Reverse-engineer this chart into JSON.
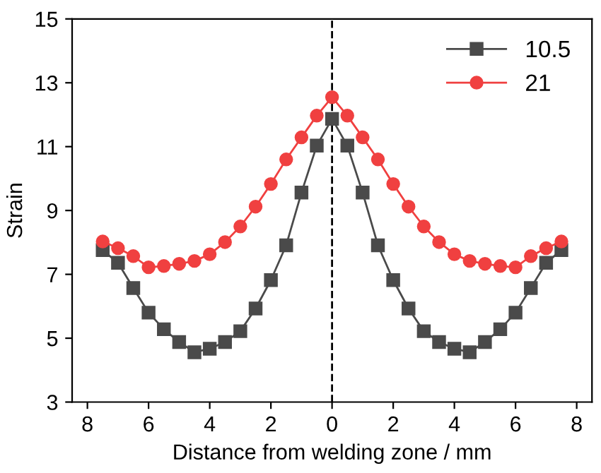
{
  "chart_data": {
    "type": "line",
    "xlabel": "Distance from welding zone / mm",
    "ylabel": "Strain",
    "x": [
      -7.5,
      -7,
      -6.5,
      -6,
      -5.5,
      -5,
      -4.5,
      -4,
      -3.5,
      -3,
      -2.5,
      -2,
      -1.5,
      -1,
      -0.5,
      0,
      0.5,
      1,
      1.5,
      2,
      2.5,
      3,
      3.5,
      4,
      4.5,
      5,
      5.5,
      6,
      6.5,
      7,
      7.5
    ],
    "series": [
      {
        "name": "10.5",
        "color": "#4a4a4a",
        "marker": "square",
        "values": [
          7.76,
          7.36,
          6.57,
          5.8,
          5.28,
          4.88,
          4.56,
          4.67,
          4.88,
          5.22,
          5.93,
          6.82,
          7.91,
          9.56,
          11.03,
          11.87,
          11.03,
          9.56,
          7.91,
          6.82,
          5.93,
          5.22,
          4.88,
          4.67,
          4.56,
          4.88,
          5.28,
          5.8,
          6.57,
          7.36,
          7.76
        ]
      },
      {
        "name": "21",
        "color": "#f04040",
        "marker": "circle",
        "values": [
          8.03,
          7.82,
          7.57,
          7.22,
          7.26,
          7.33,
          7.42,
          7.63,
          8.01,
          8.5,
          9.12,
          9.83,
          10.6,
          11.29,
          11.97,
          12.55,
          11.97,
          11.29,
          10.6,
          9.83,
          9.12,
          8.5,
          8.01,
          7.63,
          7.42,
          7.33,
          7.26,
          7.22,
          7.57,
          7.82,
          8.03
        ]
      }
    ],
    "xlim": [
      -8.5,
      8.5
    ],
    "xticks": [
      {
        "value": -8,
        "label": "8"
      },
      {
        "value": -6,
        "label": "6"
      },
      {
        "value": -4,
        "label": "4"
      },
      {
        "value": -2,
        "label": "2"
      },
      0,
      2,
      4,
      6,
      8
    ],
    "ylim": [
      3,
      15
    ],
    "yticks": [
      3,
      5,
      7,
      9,
      11,
      13,
      15
    ],
    "ref_lines": [
      {
        "axis": "x",
        "value": 0,
        "color": "#000000",
        "line_style": "dashed"
      }
    ],
    "grid": false,
    "legend": "top right",
    "line_style": "solid"
  }
}
